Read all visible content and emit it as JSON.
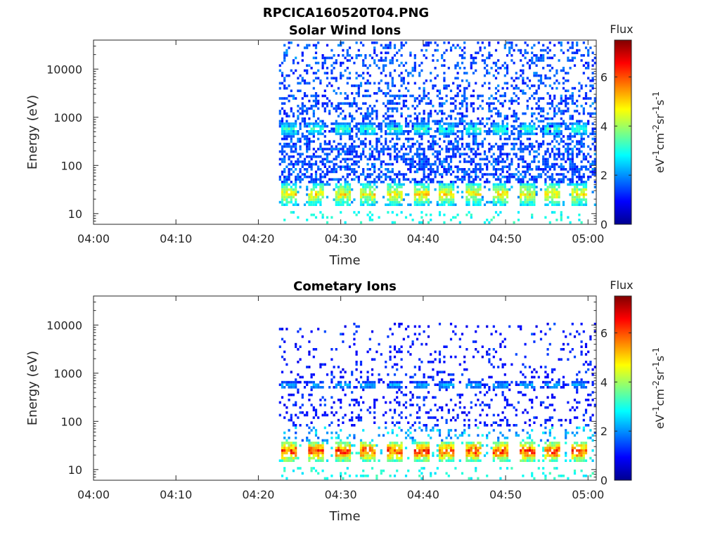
{
  "figure_title": "RPCICA160520T04.PNG",
  "colorbar_gradient": [
    "#00008f",
    "#0000ff",
    "#0080ff",
    "#00ffff",
    "#80ff80",
    "#ffff00",
    "#ff8000",
    "#ff0000",
    "#800000"
  ],
  "chart_data": [
    {
      "type": "heatmap",
      "title": "Solar Wind Ions",
      "xlabel": "Time",
      "ylabel": "Energy (eV)",
      "x_ticks": [
        "04:00",
        "04:10",
        "04:20",
        "04:30",
        "04:40",
        "04:50",
        "05:00"
      ],
      "x_range_minutes": [
        0,
        61
      ],
      "y_scale": "log",
      "y_ticks": [
        "10",
        "100",
        "1000",
        "10000"
      ],
      "y_range": [
        6,
        40000
      ],
      "data_start_minute": 22.5,
      "grid": false,
      "colorbar": {
        "title": "Flux",
        "label": "eV-1cm-2sr-1s-1",
        "label_main": [
          "eV",
          "cm",
          "sr",
          "s"
        ],
        "label_sup": [
          "-1",
          "-2",
          "-1",
          "-1"
        ],
        "ticks": [
          "0",
          "2",
          "4",
          "6"
        ],
        "range": [
          0,
          7.5
        ]
      },
      "bands": [
        {
          "energy_low": 16,
          "energy_high": 45,
          "peak_flux": 5.0,
          "period_minutes": 3.2,
          "description": "periodic low-energy band"
        },
        {
          "energy_low": 450,
          "energy_high": 800,
          "peak_flux": 3.5,
          "period_minutes": 3.2,
          "description": "periodic mid-energy band"
        },
        {
          "energy_low": 45,
          "energy_high": 40000,
          "peak_flux": 2.0,
          "description": "scattered background counts"
        }
      ]
    },
    {
      "type": "heatmap",
      "title": "Cometary Ions",
      "xlabel": "Time",
      "ylabel": "Energy (eV)",
      "x_ticks": [
        "04:00",
        "04:10",
        "04:20",
        "04:30",
        "04:40",
        "04:50",
        "05:00"
      ],
      "x_range_minutes": [
        0,
        61
      ],
      "y_scale": "log",
      "y_ticks": [
        "10",
        "100",
        "1000",
        "10000"
      ],
      "y_range": [
        6,
        40000
      ],
      "data_start_minute": 22.5,
      "grid": false,
      "colorbar": {
        "title": "Flux",
        "label": "eV-1cm-2sr-1s-1",
        "label_main": [
          "eV",
          "cm",
          "sr",
          "s"
        ],
        "label_sup": [
          "-1",
          "-2",
          "-1",
          "-1"
        ],
        "ticks": [
          "0",
          "2",
          "4",
          "6"
        ],
        "range": [
          0,
          7.5
        ]
      },
      "bands": [
        {
          "energy_low": 16,
          "energy_high": 40,
          "peak_flux": 6.5,
          "period_minutes": 3.2,
          "description": "periodic intense low-energy band"
        },
        {
          "energy_low": 40,
          "energy_high": 80,
          "peak_flux": 3.0,
          "description": "low-energy halo"
        },
        {
          "energy_low": 500,
          "energy_high": 700,
          "peak_flux": 2.5,
          "period_minutes": 3.2,
          "description": "periodic mid-energy band"
        },
        {
          "energy_low": 80,
          "energy_high": 12000,
          "peak_flux": 1.5,
          "description": "sparse background counts"
        }
      ]
    }
  ]
}
